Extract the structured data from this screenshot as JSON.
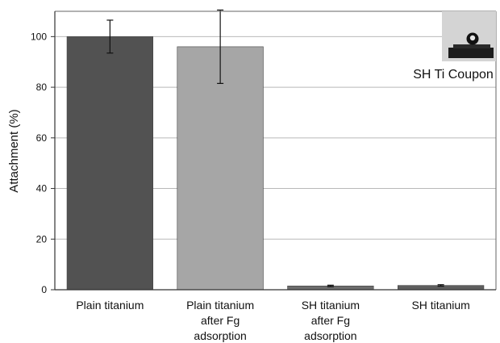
{
  "chart_data": {
    "type": "bar",
    "title": "",
    "xlabel": "",
    "ylabel": "Attachment (%)",
    "ylim": [
      0,
      110
    ],
    "yticks": [
      0,
      20,
      40,
      60,
      80,
      100
    ],
    "grid": true,
    "categories": [
      [
        "Plain titanium"
      ],
      [
        "Plain titanium",
        "after Fg",
        "adsorption"
      ],
      [
        "SH titanium",
        "after Fg",
        "adsorption"
      ],
      [
        "SH titanium"
      ]
    ],
    "values": [
      100,
      96,
      1.5,
      1.7
    ],
    "errors": [
      6.5,
      14.5,
      0.3,
      0.3
    ],
    "colors": [
      "#525252",
      "#a6a6a6",
      "#6d6d6d",
      "#5e5e5e"
    ],
    "inset": {
      "label": "SH Ti Coupon",
      "icon": "water-droplet-on-coupon-photo"
    }
  }
}
